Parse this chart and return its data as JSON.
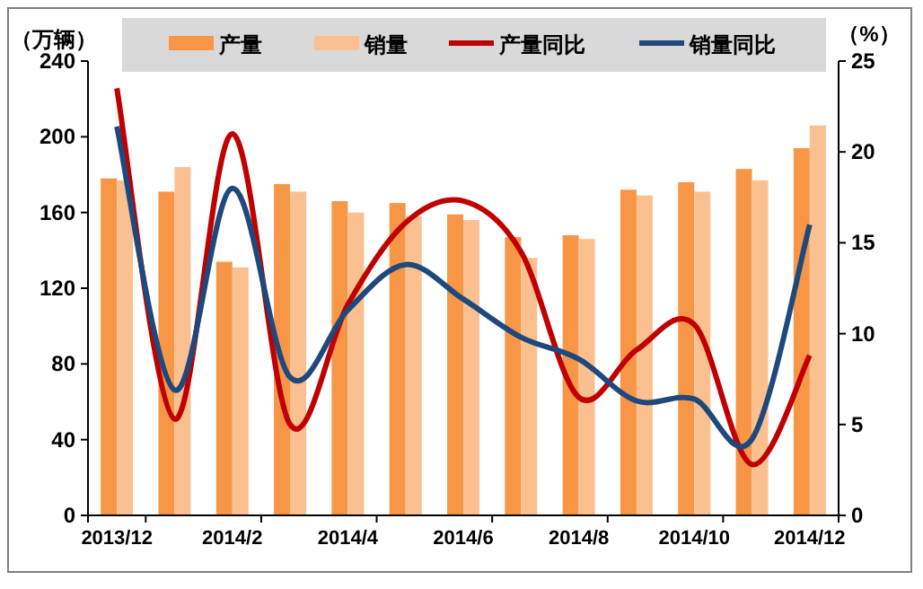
{
  "chart_data": {
    "type": "bar",
    "ylabel": "（万辆）",
    "y2label": "（%）",
    "legend": "top",
    "categories": [
      "2013/12",
      null,
      "2014/2",
      null,
      "2014/4",
      null,
      "2014/6",
      null,
      "2014/8",
      null,
      "2014/10",
      null,
      "2014/12"
    ],
    "ylim": [
      0,
      240
    ],
    "yticks": [
      0,
      40,
      80,
      120,
      160,
      200,
      240
    ],
    "y2lim": [
      0,
      25
    ],
    "y2ticks": [
      0,
      5,
      10,
      15,
      20,
      25
    ],
    "grid": false,
    "marker": "none",
    "line_style": "solid",
    "series": [
      {
        "name": "产量",
        "color": "#f79646",
        "values": [
          178,
          171,
          134,
          175,
          166,
          165,
          159,
          147,
          148,
          172,
          176,
          183,
          194
        ]
      },
      {
        "name": "销量",
        "color": "#fac090",
        "values": [
          177,
          184,
          131,
          171,
          160,
          158,
          156,
          136,
          146,
          169,
          171,
          177,
          206
        ]
      },
      {
        "name": "产量同比",
        "type": "line",
        "axis": "y2",
        "color": "#c00000",
        "values": [
          23.5,
          5.3,
          21.0,
          5.0,
          11.6,
          16.1,
          17.3,
          14.5,
          6.5,
          9.1,
          10.5,
          2.8,
          8.8
        ]
      },
      {
        "name": "销量同比",
        "type": "line",
        "axis": "y2",
        "color": "#1f497d",
        "values": [
          21.4,
          6.9,
          18.0,
          7.6,
          11.3,
          13.8,
          11.9,
          9.8,
          8.6,
          6.3,
          6.4,
          4.2,
          16.0
        ]
      }
    ]
  }
}
